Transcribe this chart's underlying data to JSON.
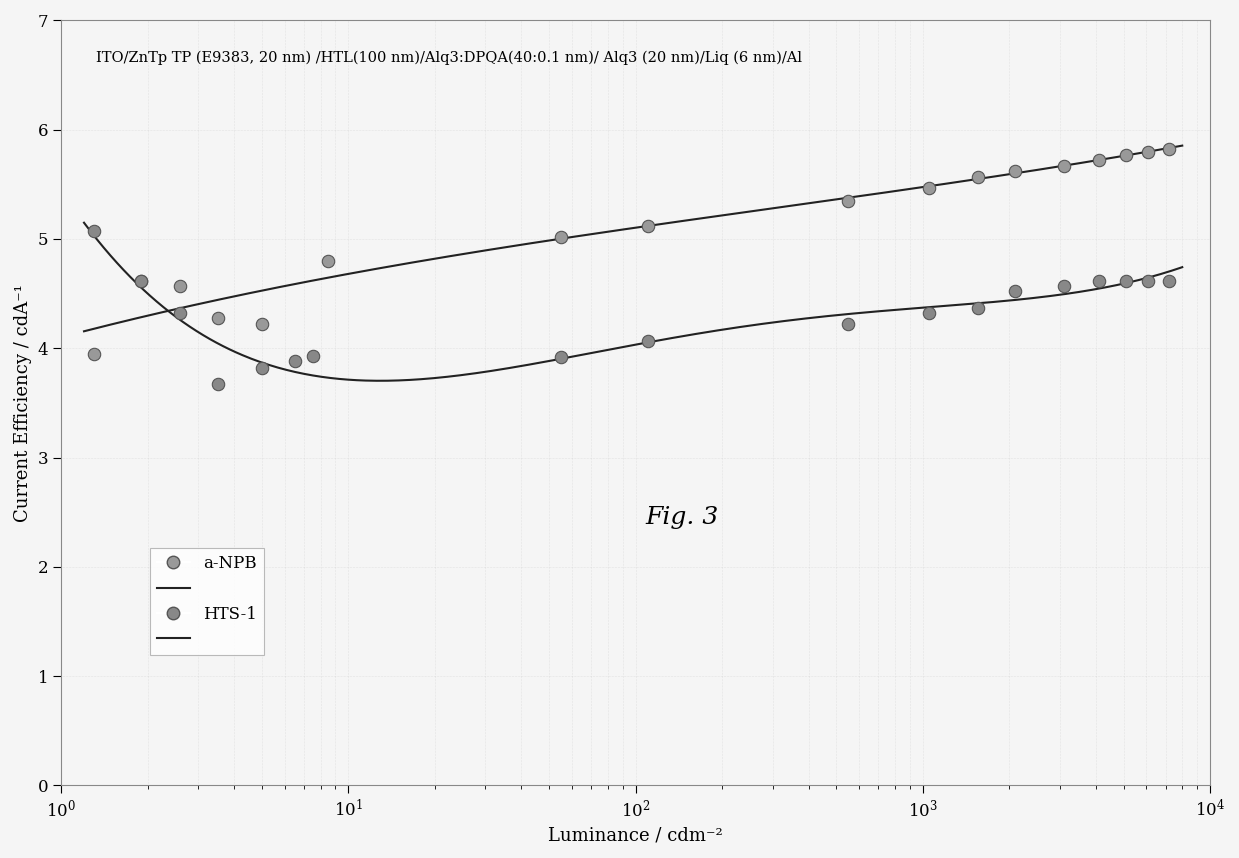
{
  "title": "ITO/ZnTp TP (E9383, 20 nm) /HTL(100 nm)/Alq3:DPQA(40:0.1 nm)/ Alq3 (20 nm)/Liq (6 nm)/Al",
  "xlabel": "Luminance / cdm⁻²",
  "ylabel": "Current Efficiency / cdA⁻¹",
  "fig_label": "Fig. 3",
  "xlim_log": [
    1.0,
    10000
  ],
  "ylim": [
    0,
    7
  ],
  "yticks": [
    0,
    1,
    2,
    3,
    4,
    5,
    6,
    7
  ],
  "background_color": "#f5f5f5",
  "anpb_scatter_x": [
    1.3,
    1.9,
    2.6,
    3.5,
    5.0,
    8.5,
    55,
    110,
    550,
    1050,
    1550,
    2100,
    3100,
    4100,
    5100,
    6100,
    7200
  ],
  "anpb_scatter_y": [
    3.95,
    4.62,
    4.57,
    4.28,
    4.22,
    4.8,
    5.02,
    5.12,
    5.35,
    5.47,
    5.57,
    5.62,
    5.67,
    5.72,
    5.77,
    5.8,
    5.82
  ],
  "hts1_scatter_x": [
    1.3,
    1.9,
    2.6,
    3.5,
    5.0,
    6.5,
    7.5,
    55,
    110,
    550,
    1050,
    1550,
    2100,
    3100,
    4100,
    5100,
    6100,
    7200
  ],
  "hts1_scatter_y": [
    5.07,
    4.62,
    4.32,
    3.67,
    3.82,
    3.88,
    3.93,
    3.92,
    4.07,
    4.22,
    4.32,
    4.37,
    4.52,
    4.57,
    4.62,
    4.62,
    4.62,
    4.62
  ],
  "scatter_color_anpb": "#999999",
  "scatter_color_hts1": "#888888",
  "line_color": "#222222",
  "marker_size": 80,
  "title_fontsize": 10.5,
  "label_fontsize": 13,
  "tick_fontsize": 12,
  "legend_fontsize": 12,
  "fig_label_fontsize": 18
}
